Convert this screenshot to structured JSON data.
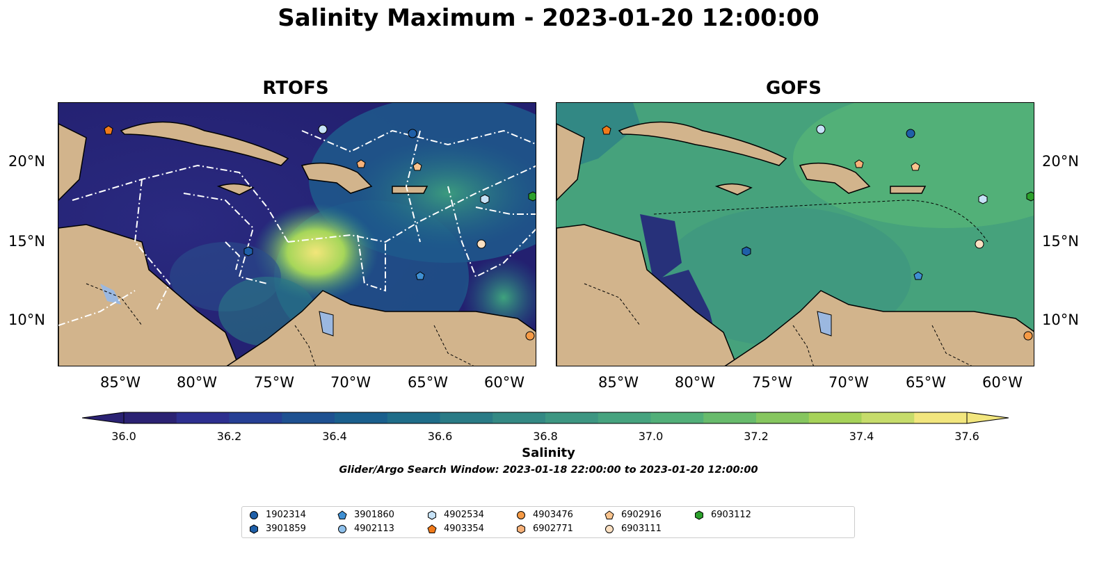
{
  "title": "Salinity Maximum - 2023-01-20 12:00:00",
  "panels": [
    {
      "title": "RTOFS",
      "palette": [
        "#2c2c82",
        "#1e3f86",
        "#0f5e8c",
        "#2a8a8a",
        "#3fa37d",
        "#a6d65a",
        "#f2e67a"
      ]
    },
    {
      "title": "GOFS",
      "palette": [
        "#2a7d87",
        "#3a9a80",
        "#47a67a",
        "#55b477"
      ]
    }
  ],
  "lat_labels": [
    "20°N",
    "15°N",
    "10°N"
  ],
  "lon_labels": [
    "85°W",
    "80°W",
    "75°W",
    "70°W",
    "65°W",
    "60°W"
  ],
  "colorbar": {
    "label": "Salinity",
    "ticks": [
      "36.0",
      "36.2",
      "36.4",
      "36.6",
      "36.8",
      "37.0",
      "37.2",
      "37.4",
      "37.6"
    ],
    "colors": [
      "#2b2273",
      "#2d2f8f",
      "#263f94",
      "#1e5191",
      "#1a5f8d",
      "#1f6d89",
      "#2a7b86",
      "#348984",
      "#3d9682",
      "#46a37f",
      "#52af79",
      "#68bb6c",
      "#86c65f",
      "#a6d259",
      "#c6dc6b",
      "#f2e67e"
    ]
  },
  "search_window": "Glider/Argo Search Window: 2023-01-18 22:00:00 to 2023-01-20 12:00:00",
  "land_color": "#d2b48c",
  "legend": [
    {
      "label": "1902314",
      "marker": "circle",
      "color": "#1f5fa8"
    },
    {
      "label": "3901859",
      "marker": "hexagon",
      "color": "#1f5fa8"
    },
    {
      "label": "3901860",
      "marker": "pentagon",
      "color": "#3f8fd2"
    },
    {
      "label": "4902113",
      "marker": "circle",
      "color": "#8fc1ec"
    },
    {
      "label": "4902534",
      "marker": "hexagon",
      "color": "#c6e2f7"
    },
    {
      "label": "4903354",
      "marker": "pentagon",
      "color": "#f07a1a"
    },
    {
      "label": "4903476",
      "marker": "circle",
      "color": "#f59a45"
    },
    {
      "label": "6902771",
      "marker": "hexagon",
      "color": "#f8b27a"
    },
    {
      "label": "6902916",
      "marker": "pentagon",
      "color": "#fac48e"
    },
    {
      "label": "6903111",
      "marker": "circle",
      "color": "#fbe0c2"
    },
    {
      "label": "6903112",
      "marker": "hexagon",
      "color": "#2ca02c"
    }
  ]
}
